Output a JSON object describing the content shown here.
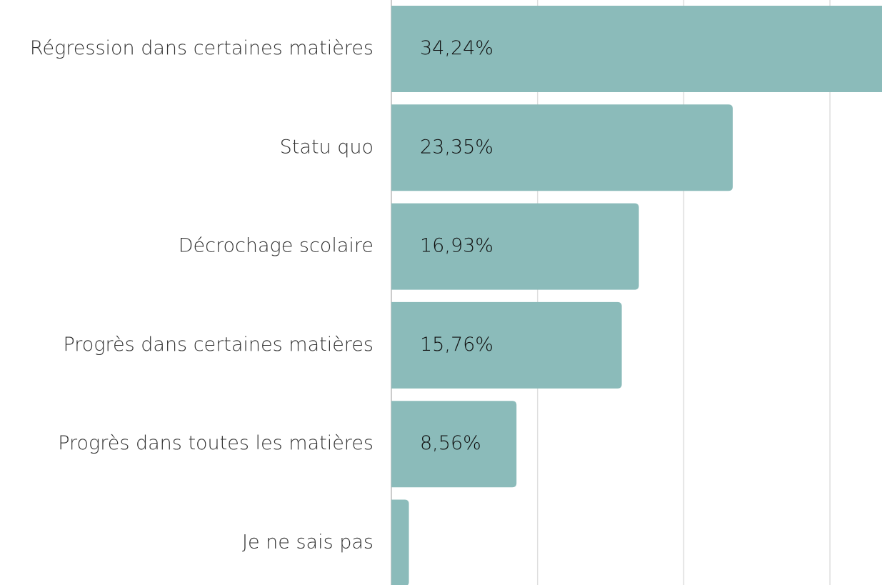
{
  "chart_data": {
    "type": "barh",
    "categories": [
      "Régression dans certaines matières",
      "Statu quo",
      "Décrochage scolaire",
      "Progrès dans certaines matières",
      "Progrès dans toutes les matières",
      "Je ne sais pas"
    ],
    "values": [
      34.24,
      23.35,
      16.93,
      15.76,
      8.56,
      1.2
    ],
    "value_labels": [
      "34,24%",
      "23,35%",
      "16,93%",
      "15,76%",
      "8,56%",
      null
    ],
    "color": "#8bbbba",
    "xlim": [
      0,
      40
    ],
    "xticks": [
      0,
      10,
      20,
      30
    ],
    "grid": true
  }
}
